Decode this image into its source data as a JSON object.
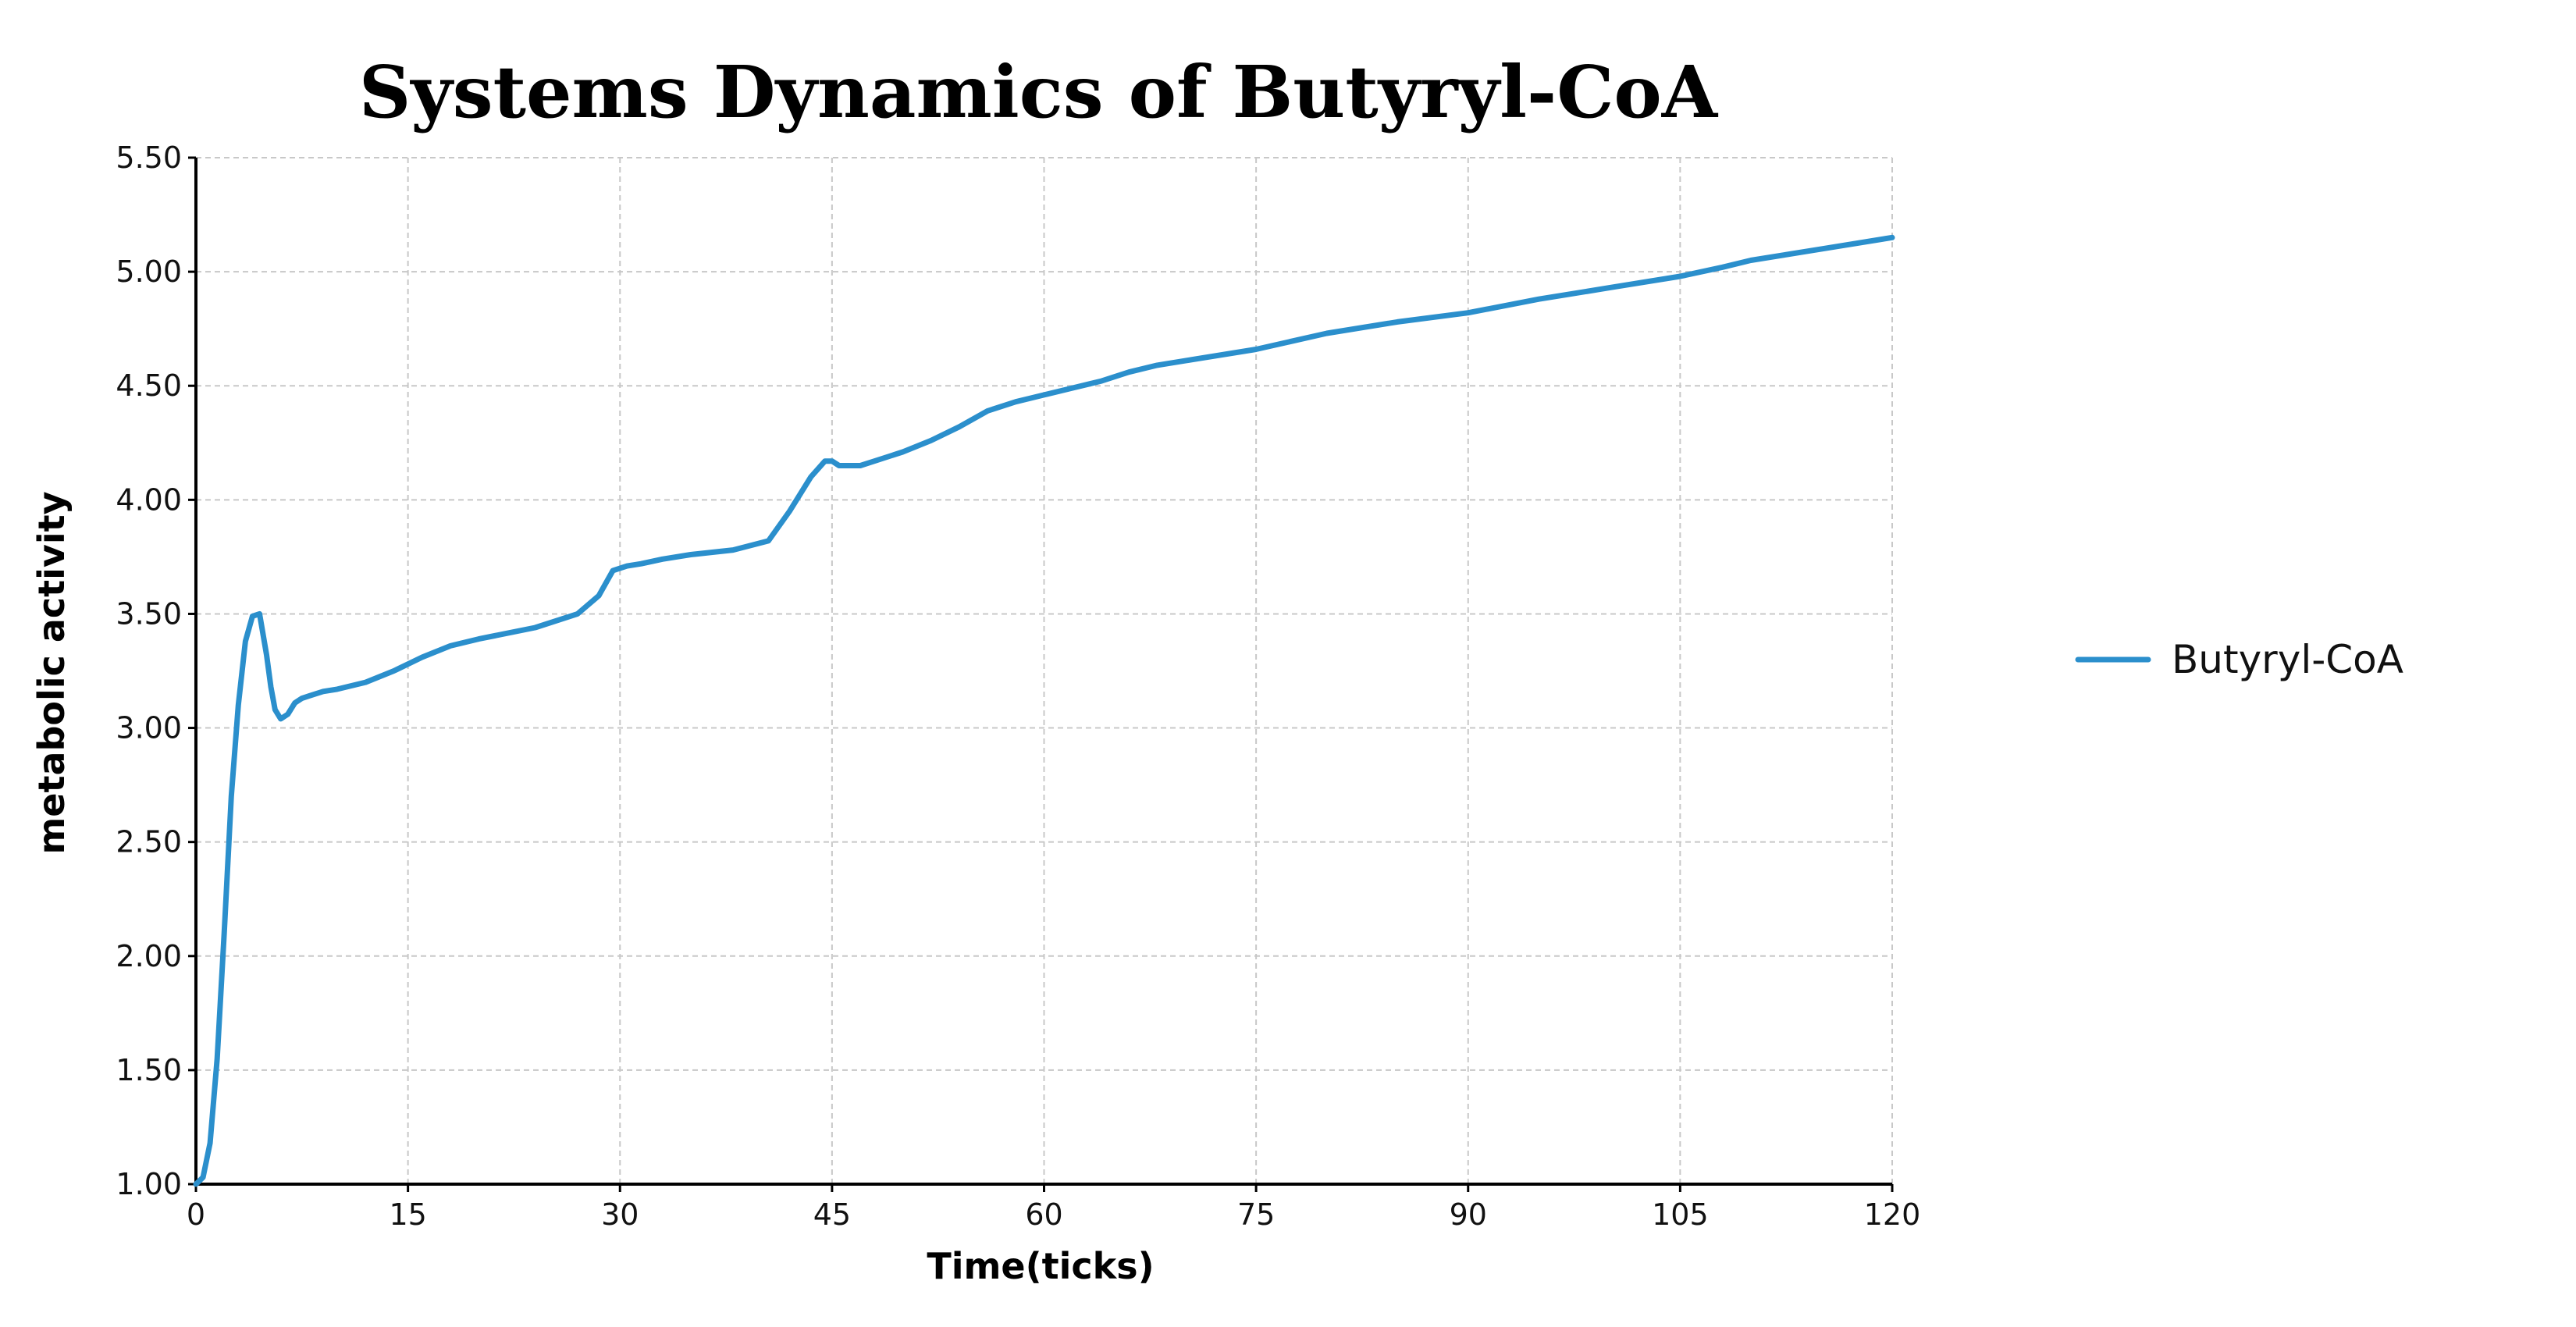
{
  "chart_data": {
    "type": "line",
    "title": "Systems Dynamics of Butyryl-CoA",
    "xlabel": "Time(ticks)",
    "ylabel": "metabolic activity",
    "xlim": [
      0,
      120
    ],
    "ylim": [
      1.0,
      5.5
    ],
    "xticks": [
      "0",
      "15",
      "30",
      "45",
      "60",
      "75",
      "90",
      "105",
      "120"
    ],
    "yticks": [
      "1.00",
      "1.50",
      "2.00",
      "2.50",
      "3.00",
      "3.50",
      "4.00",
      "4.50",
      "5.00",
      "5.50"
    ],
    "grid": true,
    "legend_position": "right",
    "series": [
      {
        "name": "Butyryl-CoA",
        "color": "#2b8fcc",
        "x": [
          0,
          0.5,
          1,
          1.5,
          2,
          2.5,
          3,
          3.5,
          4,
          4.5,
          5,
          5.3,
          5.6,
          6,
          6.5,
          7,
          7.5,
          8,
          8.5,
          9,
          10,
          12,
          14,
          16,
          18,
          20,
          24,
          27,
          28.5,
          29.5,
          30.5,
          31.5,
          33,
          35,
          38,
          40.5,
          42,
          43.5,
          44.5,
          45,
          45.5,
          47,
          48,
          50,
          52,
          54,
          56,
          58,
          60,
          62,
          64,
          66,
          68,
          70,
          75,
          80,
          85,
          90,
          95,
          100,
          105,
          108,
          110,
          115,
          120
        ],
        "values": [
          1.0,
          1.03,
          1.18,
          1.55,
          2.1,
          2.7,
          3.1,
          3.38,
          3.49,
          3.5,
          3.32,
          3.18,
          3.08,
          3.04,
          3.06,
          3.11,
          3.13,
          3.14,
          3.15,
          3.16,
          3.17,
          3.2,
          3.25,
          3.31,
          3.36,
          3.39,
          3.44,
          3.5,
          3.58,
          3.69,
          3.71,
          3.72,
          3.74,
          3.76,
          3.78,
          3.82,
          3.95,
          4.1,
          4.17,
          4.17,
          4.15,
          4.15,
          4.17,
          4.21,
          4.26,
          4.32,
          4.39,
          4.43,
          4.46,
          4.49,
          4.52,
          4.56,
          4.59,
          4.61,
          4.66,
          4.73,
          4.78,
          4.82,
          4.88,
          4.93,
          4.98,
          5.02,
          5.05,
          5.1,
          5.15
        ]
      }
    ]
  }
}
